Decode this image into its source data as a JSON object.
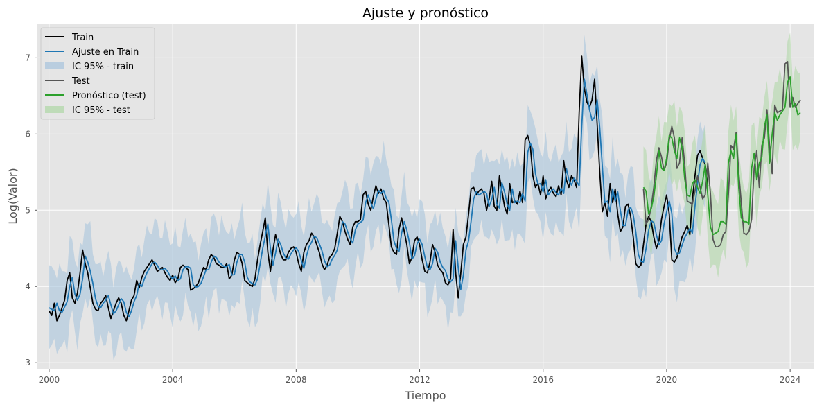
{
  "chart_data": {
    "type": "line",
    "title": "Ajuste y pronóstico",
    "xlabel": "Tiempo",
    "ylabel": "Log(Valor)",
    "xlim": [
      1999.62,
      2024.76
    ],
    "ylim": [
      2.92,
      7.44
    ],
    "xticks": [
      2000,
      2004,
      2008,
      2012,
      2016,
      2020,
      2024
    ],
    "xtick_labels": [
      "2000",
      "2004",
      "2008",
      "2012",
      "2016",
      "2020",
      "2024"
    ],
    "yticks": [
      3,
      4,
      5,
      6,
      7
    ],
    "ytick_labels": [
      "3",
      "4",
      "5",
      "6",
      "7"
    ],
    "grid": true,
    "legend_position": "top-left",
    "colors": {
      "background": "#e5e5e5",
      "grid": "#ffffff",
      "train": "#000000",
      "fit": "#1f77b4",
      "ci_train": "#a9c4dc",
      "test": "#555555",
      "forecast": "#2ca02c",
      "ci_test": "#b0d7a8"
    },
    "series": [
      {
        "name": "Train",
        "key": "train",
        "x_start": 2000.0,
        "step": 0.0833333,
        "values": [
          3.68,
          3.62,
          3.78,
          3.55,
          3.62,
          3.72,
          3.82,
          4.08,
          4.18,
          3.85,
          3.78,
          3.92,
          4.18,
          4.48,
          4.3,
          4.18,
          3.98,
          3.78,
          3.7,
          3.68,
          3.78,
          3.82,
          3.88,
          3.72,
          3.58,
          3.68,
          3.78,
          3.85,
          3.78,
          3.62,
          3.55,
          3.68,
          3.82,
          3.88,
          4.08,
          3.98,
          4.12,
          4.2,
          4.25,
          4.3,
          4.35,
          4.28,
          4.2,
          4.22,
          4.25,
          4.18,
          4.12,
          4.08,
          4.15,
          4.05,
          4.1,
          4.25,
          4.28,
          4.25,
          4.22,
          3.95,
          3.97,
          4.0,
          4.05,
          4.15,
          4.25,
          4.22,
          4.35,
          4.42,
          4.38,
          4.3,
          4.28,
          4.25,
          4.25,
          4.3,
          4.1,
          4.15,
          4.35,
          4.45,
          4.42,
          4.3,
          4.08,
          4.05,
          4.02,
          4.0,
          4.1,
          4.35,
          4.55,
          4.72,
          4.9,
          4.45,
          4.2,
          4.48,
          4.68,
          4.55,
          4.42,
          4.35,
          4.35,
          4.45,
          4.5,
          4.52,
          4.45,
          4.3,
          4.2,
          4.45,
          4.55,
          4.6,
          4.7,
          4.65,
          4.55,
          4.45,
          4.3,
          4.22,
          4.28,
          4.38,
          4.42,
          4.5,
          4.7,
          4.92,
          4.85,
          4.72,
          4.62,
          4.55,
          4.78,
          4.85,
          4.85,
          4.88,
          5.2,
          5.25,
          5.08,
          5.0,
          5.18,
          5.32,
          5.22,
          5.28,
          5.15,
          5.1,
          4.82,
          4.52,
          4.45,
          4.42,
          4.75,
          4.9,
          4.72,
          4.55,
          4.3,
          4.38,
          4.6,
          4.65,
          4.55,
          4.35,
          4.2,
          4.18,
          4.32,
          4.55,
          4.45,
          4.28,
          4.22,
          4.18,
          4.05,
          4.02,
          4.1,
          4.75,
          4.18,
          3.85,
          4.18,
          4.55,
          4.65,
          4.95,
          5.28,
          5.3,
          5.2,
          5.25,
          5.28,
          5.22,
          5.0,
          5.15,
          5.38,
          5.05,
          5.0,
          5.45,
          5.25,
          5.05,
          4.95,
          5.35,
          5.1,
          5.12,
          5.08,
          5.25,
          5.1,
          5.92,
          5.98,
          5.85,
          5.45,
          5.3,
          5.35,
          5.2,
          5.45,
          5.15,
          5.25,
          5.3,
          5.22,
          5.18,
          5.32,
          5.2,
          5.65,
          5.4,
          5.3,
          5.45,
          5.4,
          5.3,
          6.28,
          7.02,
          6.6,
          6.42,
          6.35,
          6.45,
          6.72,
          6.12,
          5.5,
          4.98,
          5.1,
          4.92,
          5.35,
          5.1,
          5.28,
          4.95,
          4.72,
          4.78,
          5.05,
          5.08,
          4.92,
          4.65,
          4.3,
          4.25,
          4.28,
          4.55,
          4.82,
          4.92,
          4.85,
          4.65,
          4.5,
          4.6,
          4.88,
          5.05,
          5.2,
          4.95,
          4.35,
          4.32,
          4.38,
          4.52,
          4.65,
          4.72,
          4.8,
          4.68,
          5.15,
          5.45,
          5.72,
          5.78,
          5.68,
          5.6,
          5.32
        ]
      },
      {
        "name": "Ajuste en Train",
        "key": "fit",
        "x_start": 2000.0,
        "step": 0.0833333,
        "values": [
          3.72,
          3.7,
          3.68,
          3.78,
          3.68,
          3.66,
          3.73,
          3.8,
          4.0,
          4.12,
          3.9,
          3.82,
          3.9,
          4.1,
          4.4,
          4.32,
          4.2,
          4.04,
          3.84,
          3.74,
          3.72,
          3.78,
          3.82,
          3.88,
          3.76,
          3.64,
          3.68,
          3.76,
          3.84,
          3.8,
          3.66,
          3.6,
          3.68,
          3.8,
          3.88,
          4.04,
          4.0,
          4.1,
          4.18,
          4.24,
          4.3,
          4.32,
          4.28,
          4.22,
          4.22,
          4.24,
          4.2,
          4.14,
          4.1,
          4.14,
          4.08,
          4.1,
          4.22,
          4.26,
          4.26,
          4.24,
          4.02,
          3.99,
          4.0,
          4.04,
          4.13,
          4.22,
          4.22,
          4.32,
          4.4,
          4.38,
          4.32,
          4.29,
          4.26,
          4.26,
          4.29,
          4.15,
          4.16,
          4.32,
          4.42,
          4.42,
          4.32,
          4.12,
          4.06,
          4.04,
          4.02,
          4.1,
          4.3,
          4.5,
          4.66,
          4.82,
          4.5,
          4.28,
          4.44,
          4.62,
          4.55,
          4.44,
          4.37,
          4.36,
          4.43,
          4.48,
          4.51,
          4.46,
          4.34,
          4.24,
          4.4,
          4.52,
          4.58,
          4.66,
          4.64,
          4.56,
          4.47,
          4.34,
          4.26,
          4.28,
          4.36,
          4.41,
          4.48,
          4.66,
          4.85,
          4.82,
          4.72,
          4.63,
          4.57,
          4.74,
          4.82,
          4.84,
          4.87,
          5.1,
          5.2,
          5.1,
          5.02,
          5.15,
          5.26,
          5.22,
          5.26,
          5.16,
          5.11,
          4.88,
          4.6,
          4.5,
          4.46,
          4.7,
          4.85,
          4.74,
          4.58,
          4.36,
          4.4,
          4.56,
          4.62,
          4.55,
          4.39,
          4.25,
          4.22,
          4.3,
          4.5,
          4.45,
          4.32,
          4.25,
          4.21,
          4.1,
          4.06,
          4.1,
          4.6,
          4.25,
          3.96,
          4.15,
          4.48,
          4.6,
          4.86,
          5.15,
          5.24,
          5.2,
          5.22,
          5.25,
          5.22,
          5.05,
          5.14,
          5.3,
          5.08,
          5.03,
          5.36,
          5.24,
          5.08,
          5.0,
          5.28,
          5.1,
          5.12,
          5.1,
          5.22,
          5.12,
          5.76,
          5.88,
          5.8,
          5.48,
          5.34,
          5.35,
          5.24,
          5.4,
          5.2,
          5.25,
          5.28,
          5.23,
          5.2,
          5.29,
          5.22,
          5.55,
          5.4,
          5.33,
          5.42,
          5.38,
          5.32,
          6.1,
          6.72,
          6.52,
          6.32,
          6.18,
          6.22,
          6.45,
          6.08,
          5.58,
          5.1,
          5.12,
          4.98,
          5.28,
          5.12,
          5.24,
          5.0,
          4.8,
          4.8,
          5.0,
          5.04,
          4.94,
          4.72,
          4.42,
          4.33,
          4.32,
          4.5,
          4.74,
          4.86,
          4.84,
          4.68,
          4.55,
          4.6,
          4.82,
          4.98,
          5.12,
          4.96,
          4.5,
          4.42,
          4.44,
          4.54,
          4.64,
          4.7,
          4.76,
          4.7,
          5.05,
          5.35,
          5.6,
          5.68,
          5.62
        ]
      },
      {
        "name": "IC 95% - train",
        "key": "ci_train",
        "halfwidth": 0.5
      },
      {
        "name": "Test",
        "key": "test",
        "x_start": 2019.25,
        "step": 0.0833333,
        "values": [
          5.28,
          4.82,
          4.88,
          5.05,
          5.3,
          5.65,
          5.82,
          5.7,
          5.52,
          5.62,
          5.92,
          6.1,
          5.95,
          5.55,
          5.62,
          5.95,
          5.62,
          5.12,
          5.1,
          5.08,
          5.25,
          5.45,
          5.3,
          5.15,
          5.2,
          5.62,
          5.22,
          4.62,
          4.52,
          4.52,
          4.55,
          4.68,
          4.72,
          5.2,
          5.85,
          5.8,
          6.02,
          5.5,
          5.1,
          4.7,
          4.68,
          4.72,
          4.88,
          5.55,
          5.78,
          5.3,
          5.85,
          5.95,
          6.32,
          5.85,
          5.48,
          6.38,
          6.28,
          6.3,
          6.32,
          6.92,
          6.95,
          6.35,
          6.48,
          6.35,
          6.4,
          6.45
        ]
      },
      {
        "name": "Pronóstico (test)",
        "key": "forecast",
        "x_start": 2019.25,
        "step": 0.0833333,
        "values": [
          5.3,
          5.25,
          4.95,
          5.02,
          5.18,
          5.45,
          5.78,
          5.55,
          5.52,
          5.68,
          5.98,
          5.95,
          5.78,
          5.68,
          5.95,
          5.82,
          5.42,
          5.2,
          5.18,
          5.35,
          5.4,
          5.3,
          5.22,
          5.38,
          5.6,
          5.2,
          4.78,
          4.68,
          4.7,
          4.72,
          4.85,
          4.85,
          4.82,
          5.62,
          5.78,
          5.68,
          6.0,
          5.3,
          4.9,
          4.85,
          4.85,
          4.82,
          5.55,
          5.75,
          5.4,
          5.62,
          5.7,
          6.1,
          6.25,
          5.62,
          6.0,
          6.28,
          6.18,
          6.25,
          6.3,
          6.35,
          6.68,
          6.75,
          6.35,
          6.4,
          6.25,
          6.28
        ]
      },
      {
        "name": "IC 95% - test",
        "key": "ci_test",
        "halfwidth": 0.48
      }
    ]
  }
}
